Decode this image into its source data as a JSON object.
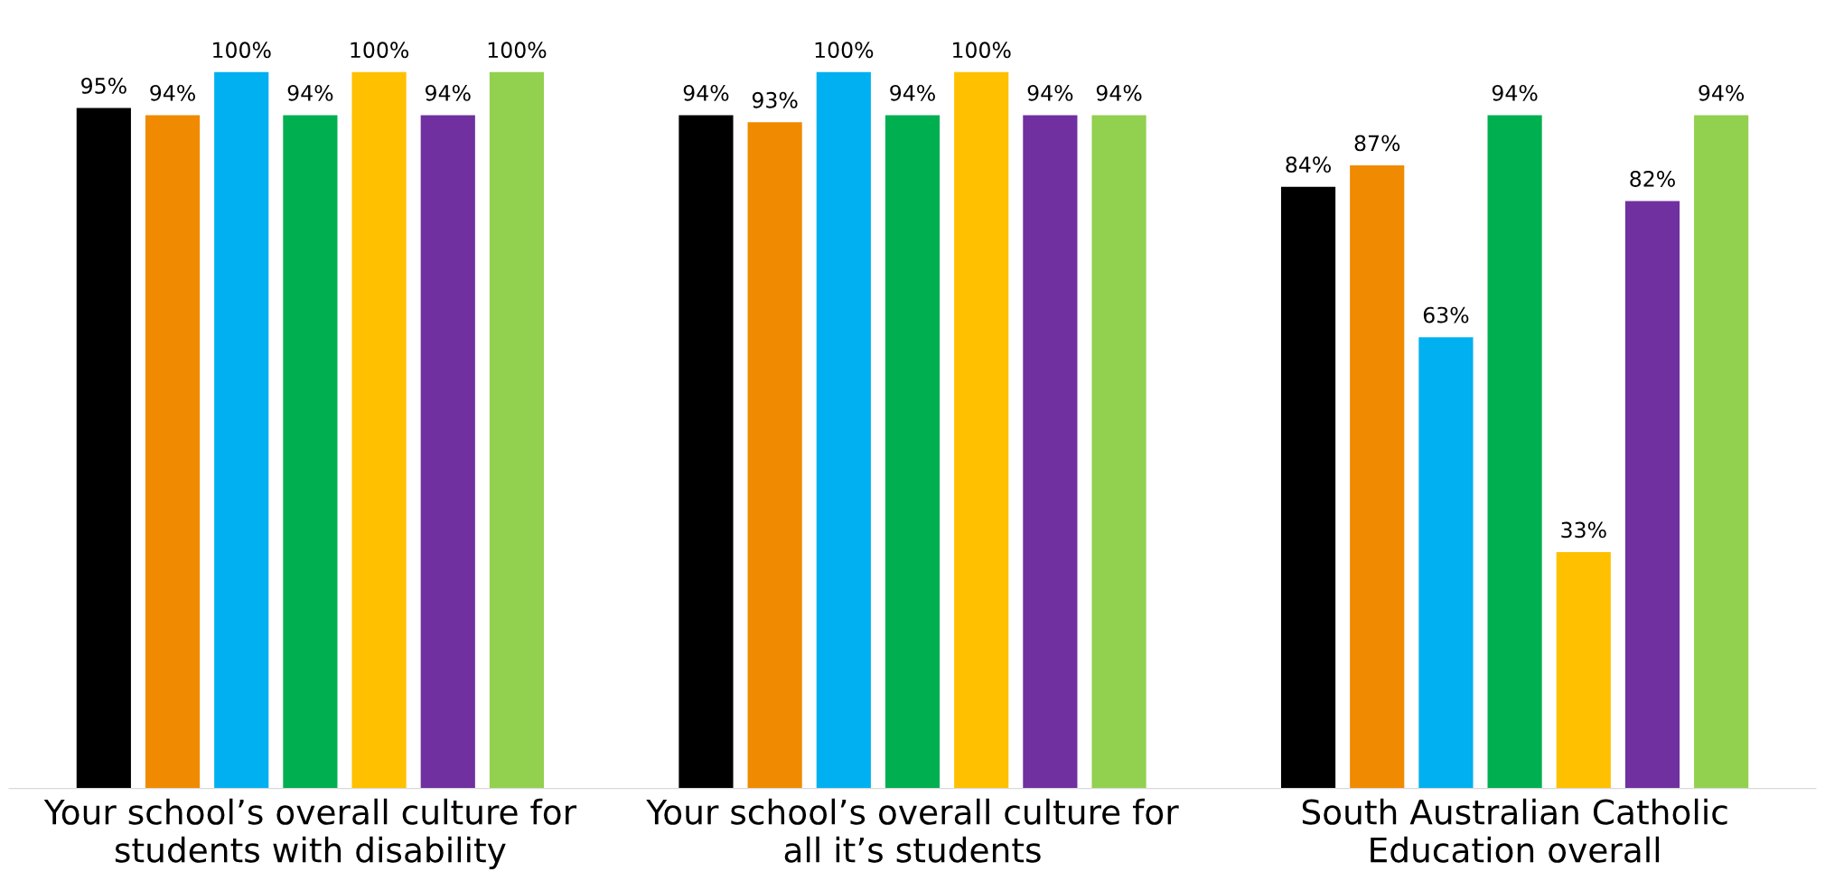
{
  "chart_data": {
    "type": "bar",
    "categories": [
      "Your school’s overall culture for\nstudents with disability",
      "Your school’s overall culture for\nall it’s students",
      "South Australian Catholic\nEducation overall"
    ],
    "series": [
      {
        "color": "#000000",
        "values": [
          95,
          94,
          84
        ],
        "value_labels": [
          "95%",
          "94%",
          "84%"
        ]
      },
      {
        "color": "#f08a00",
        "values": [
          94,
          93,
          87
        ],
        "value_labels": [
          "94%",
          "93%",
          "87%"
        ]
      },
      {
        "color": "#00b0f0",
        "values": [
          100,
          100,
          63
        ],
        "value_labels": [
          "100%",
          "100%",
          "63%"
        ]
      },
      {
        "color": "#00b050",
        "values": [
          94,
          94,
          94
        ],
        "value_labels": [
          "94%",
          "94%",
          "94%"
        ]
      },
      {
        "color": "#ffc000",
        "values": [
          100,
          100,
          33
        ],
        "value_labels": [
          "100%",
          "100%",
          "33%"
        ]
      },
      {
        "color": "#7030a0",
        "values": [
          94,
          94,
          82
        ],
        "value_labels": [
          "94%",
          "94%",
          "82%"
        ]
      },
      {
        "color": "#92d050",
        "values": [
          100,
          94,
          94
        ],
        "value_labels": [
          "100%",
          "94%",
          "94%"
        ]
      }
    ]
  }
}
